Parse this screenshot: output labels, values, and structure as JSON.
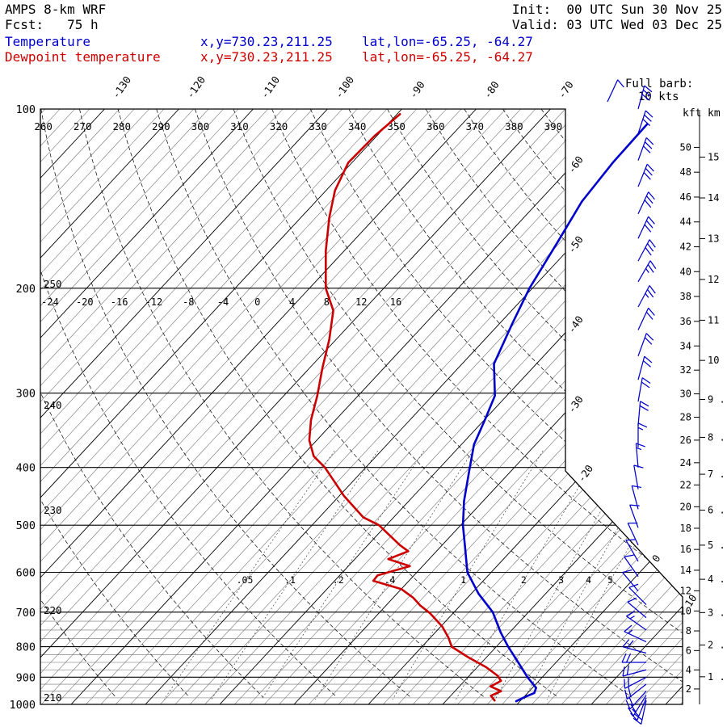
{
  "header": {
    "model": "AMPS 8-km WRF",
    "fcst": "Fcst:   75 h",
    "init": "Init:  00 UTC Sun 30 Nov 25",
    "valid": "Valid: 03 UTC Wed 03 Dec 25",
    "temp_label": "Temperature",
    "temp_xy": "x,y=730.23,211.25",
    "temp_latlon": "lat,lon=-65.25, -64.27",
    "dewp_label": "Dewpoint temperature",
    "dewp_xy": "x,y=730.23,211.25",
    "dewp_latlon": "lat,lon=-65.25, -64.27"
  },
  "legend": {
    "full_barb": "Full barb:",
    "kts": "10 kts"
  },
  "colors": {
    "temperature": "#0000cc",
    "dewpoint": "#cc0000",
    "barbs": "#0000cc",
    "grid_major": "#000000",
    "grid_minor": "#9a9a9a"
  },
  "axes": {
    "pressure_ticks": [
      100,
      200,
      300,
      400,
      500,
      600,
      700,
      800,
      900,
      1000
    ],
    "pressure_minor": [
      725,
      750,
      775,
      825,
      850,
      875,
      925,
      950,
      975
    ],
    "kft_label": "kft",
    "km_label": "km",
    "kft_ticks": [
      50,
      48,
      46,
      44,
      42,
      40,
      38,
      36,
      34,
      32,
      30,
      28,
      26,
      24,
      22,
      20,
      18,
      16,
      14,
      12,
      10,
      8,
      6,
      4,
      2
    ],
    "km_ticks": [
      15,
      14,
      13,
      12,
      11,
      10,
      9,
      8,
      7,
      6,
      5,
      4,
      3,
      2,
      1
    ]
  },
  "chart_data": {
    "type": "line",
    "subtype": "skew-t log-p sounding",
    "pressure_range_hpa": [
      100,
      1000
    ],
    "isotherm_step_minor_c": 2,
    "isotherm_step_major_c": 10,
    "top_isotherm_labels": [
      -130,
      -120,
      -110,
      -100,
      -90,
      -80,
      -70
    ],
    "right_isotherm_labels": [
      -60,
      -50,
      -40,
      -30,
      -20
    ],
    "lower_isotherm_labels": [
      0,
      10
    ],
    "theta_top_labels": [
      260,
      270,
      280,
      290,
      300,
      310,
      320,
      330,
      340,
      350,
      360,
      370,
      380,
      390
    ],
    "theta_left_labels": [
      250,
      240,
      230,
      220,
      210
    ],
    "scale_200": [
      "-24",
      "-20",
      "-16",
      "-12",
      "-8",
      "-4",
      "0",
      "4",
      "8",
      "12",
      "16"
    ],
    "mixing_ratio": {
      "values": [
        0.05,
        0.1,
        0.2,
        0.4,
        1,
        2,
        3,
        4,
        5
      ],
      "labels": [
        ".05",
        ".1",
        ".2",
        ".4",
        "1",
        "2",
        "3",
        "4",
        "5"
      ]
    },
    "series": [
      {
        "name": "Temperature",
        "color": "#0000cc",
        "units": "hPa, degC",
        "points": [
          [
            106,
            -55.1
          ],
          [
            123,
            -54.9
          ],
          [
            143,
            -54.2
          ],
          [
            167,
            -52.4
          ],
          [
            200,
            -50.4
          ],
          [
            229,
            -48.3
          ],
          [
            268,
            -45.7
          ],
          [
            303,
            -41.6
          ],
          [
            333,
            -39.9
          ],
          [
            366,
            -38.3
          ],
          [
            400,
            -36.0
          ],
          [
            455,
            -32.6
          ],
          [
            500,
            -29.7
          ],
          [
            553,
            -26.1
          ],
          [
            600,
            -23.2
          ],
          [
            652,
            -19.0
          ],
          [
            700,
            -14.8
          ],
          [
            757,
            -11.2
          ],
          [
            800,
            -8.4
          ],
          [
            850,
            -5.1
          ],
          [
            900,
            -2.0
          ],
          [
            938,
            0.5
          ],
          [
            957,
            0.9
          ],
          [
            973,
            0.1
          ],
          [
            988,
            -0.5
          ]
        ]
      },
      {
        "name": "Dewpoint temperature",
        "color": "#cc0000",
        "units": "hPa, degC",
        "points": [
          [
            102,
            -89.6
          ],
          [
            111,
            -90.3
          ],
          [
            123,
            -90.5
          ],
          [
            137,
            -88.8
          ],
          [
            152,
            -86.2
          ],
          [
            173,
            -82.5
          ],
          [
            200,
            -77.8
          ],
          [
            218,
            -74.0
          ],
          [
            244,
            -70.9
          ],
          [
            272,
            -68.3
          ],
          [
            303,
            -65.5
          ],
          [
            333,
            -63.3
          ],
          [
            360,
            -61.0
          ],
          [
            383,
            -58.4
          ],
          [
            400,
            -55.5
          ],
          [
            447,
            -49.3
          ],
          [
            485,
            -44.1
          ],
          [
            500,
            -41.0
          ],
          [
            540,
            -35.7
          ],
          [
            553,
            -33.8
          ],
          [
            570,
            -35.5
          ],
          [
            586,
            -31.7
          ],
          [
            607,
            -34.9
          ],
          [
            620,
            -34.8
          ],
          [
            640,
            -30.0
          ],
          [
            662,
            -27.3
          ],
          [
            682,
            -25.4
          ],
          [
            703,
            -23.1
          ],
          [
            740,
            -19.8
          ],
          [
            772,
            -17.6
          ],
          [
            800,
            -16.0
          ],
          [
            833,
            -12.5
          ],
          [
            866,
            -8.8
          ],
          [
            895,
            -6.2
          ],
          [
            913,
            -5.1
          ],
          [
            933,
            -5.8
          ],
          [
            950,
            -3.8
          ],
          [
            967,
            -4.6
          ],
          [
            985,
            -3.5
          ]
        ]
      }
    ],
    "wind_barbs_p_spd_dir": [
      [
        100,
        28,
        15
      ],
      [
        110,
        30,
        18
      ],
      [
        122,
        32,
        20
      ],
      [
        135,
        32,
        22
      ],
      [
        150,
        30,
        25
      ],
      [
        165,
        28,
        25
      ],
      [
        180,
        28,
        28
      ],
      [
        195,
        25,
        30
      ],
      [
        215,
        25,
        28
      ],
      [
        235,
        22,
        25
      ],
      [
        260,
        22,
        20
      ],
      [
        285,
        20,
        15
      ],
      [
        310,
        18,
        10
      ],
      [
        340,
        18,
        5
      ],
      [
        370,
        15,
        0
      ],
      [
        400,
        15,
        355
      ],
      [
        435,
        12,
        350
      ],
      [
        470,
        12,
        345
      ],
      [
        505,
        10,
        340
      ],
      [
        540,
        10,
        335
      ],
      [
        575,
        8,
        330
      ],
      [
        610,
        10,
        325
      ],
      [
        645,
        10,
        320
      ],
      [
        680,
        12,
        315
      ],
      [
        715,
        12,
        310
      ],
      [
        750,
        15,
        305
      ],
      [
        785,
        15,
        295
      ],
      [
        820,
        18,
        285
      ],
      [
        850,
        18,
        270
      ],
      [
        875,
        20,
        255
      ],
      [
        900,
        20,
        242
      ],
      [
        925,
        22,
        232
      ],
      [
        950,
        22,
        222
      ],
      [
        965,
        20,
        212
      ],
      [
        975,
        20,
        202
      ],
      [
        985,
        18,
        192
      ]
    ],
    "full_barb_kts": 10
  }
}
